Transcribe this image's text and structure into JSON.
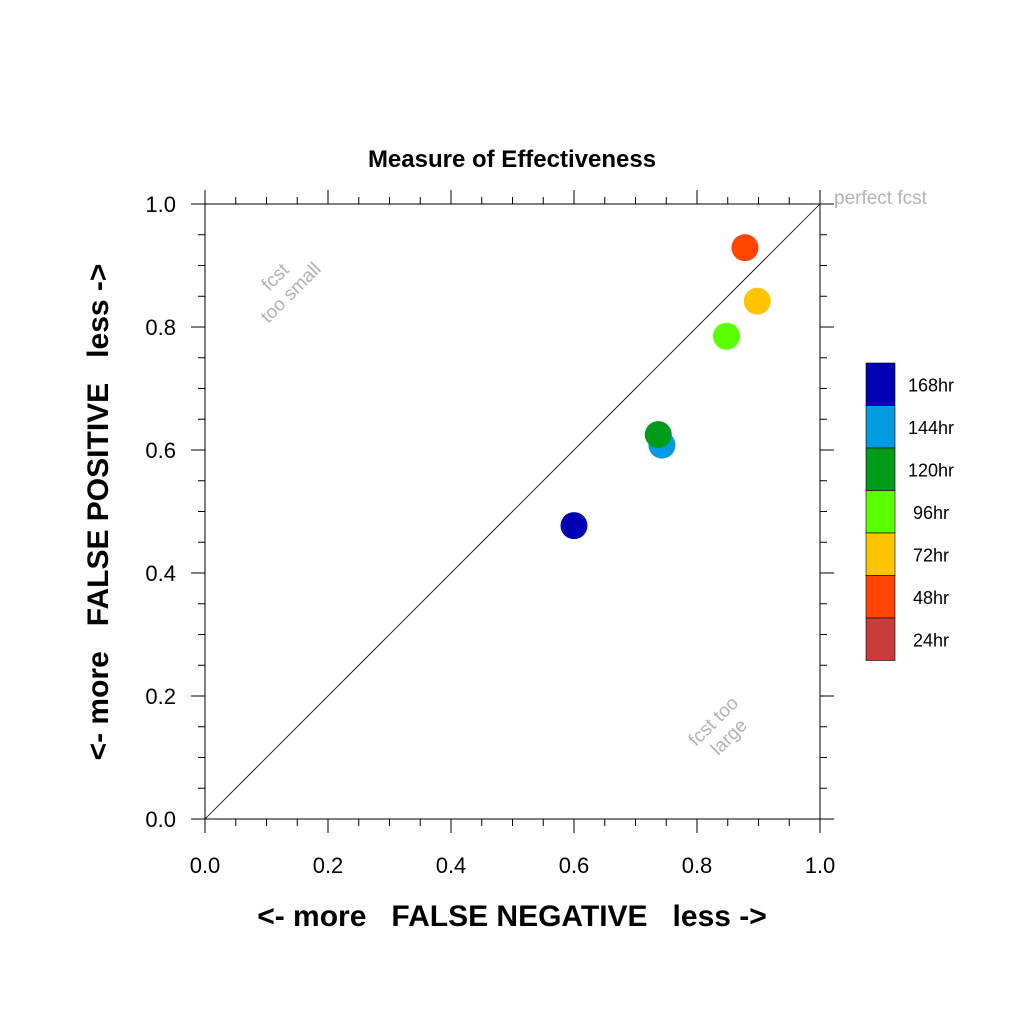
{
  "chart_data": {
    "type": "scatter",
    "title": "Measure of Effectiveness",
    "xlabel": "<- more   FALSE NEGATIVE   less ->",
    "ylabel": "<- more   FALSE POSITIVE   less ->",
    "xlim": [
      0.0,
      1.0
    ],
    "ylim": [
      0.0,
      1.0
    ],
    "xticks": [
      "0.0",
      "0.2",
      "0.4",
      "0.6",
      "0.8",
      "1.0"
    ],
    "yticks": [
      "0.0",
      "0.2",
      "0.4",
      "0.6",
      "0.8",
      "1.0"
    ],
    "grid": false,
    "reference_line": "diagonal y = x",
    "annotations": {
      "perfect": "perfect fcst",
      "too_small_1": "fcst",
      "too_small_2": "too small",
      "too_large_1": "fcst too",
      "too_large_2": "large"
    },
    "legend_placement": "right",
    "legend": [
      {
        "label": "168hr",
        "color": "#0000b4"
      },
      {
        "label": "144hr",
        "color": "#009be0"
      },
      {
        "label": "120hr",
        "color": "#009b19"
      },
      {
        "label": "96hr",
        "color": "#5aff00"
      },
      {
        "label": "72hr",
        "color": "#ffc400"
      },
      {
        "label": "48hr",
        "color": "#ff4500"
      },
      {
        "label": "24hr",
        "color": "#c83c3c"
      }
    ],
    "points": [
      {
        "series": "168hr",
        "x": 0.6,
        "y": 0.477,
        "color": "#0000b4"
      },
      {
        "series": "144hr",
        "x": 0.743,
        "y": 0.608,
        "color": "#009be0"
      },
      {
        "series": "120hr",
        "x": 0.737,
        "y": 0.625,
        "color": "#009b19"
      },
      {
        "series": "96hr",
        "x": 0.848,
        "y": 0.785,
        "color": "#5aff00"
      },
      {
        "series": "72hr",
        "x": 0.898,
        "y": 0.842,
        "color": "#ffc400"
      },
      {
        "series": "48hr",
        "x": 0.878,
        "y": 0.929,
        "color": "#ff4500"
      }
    ]
  }
}
